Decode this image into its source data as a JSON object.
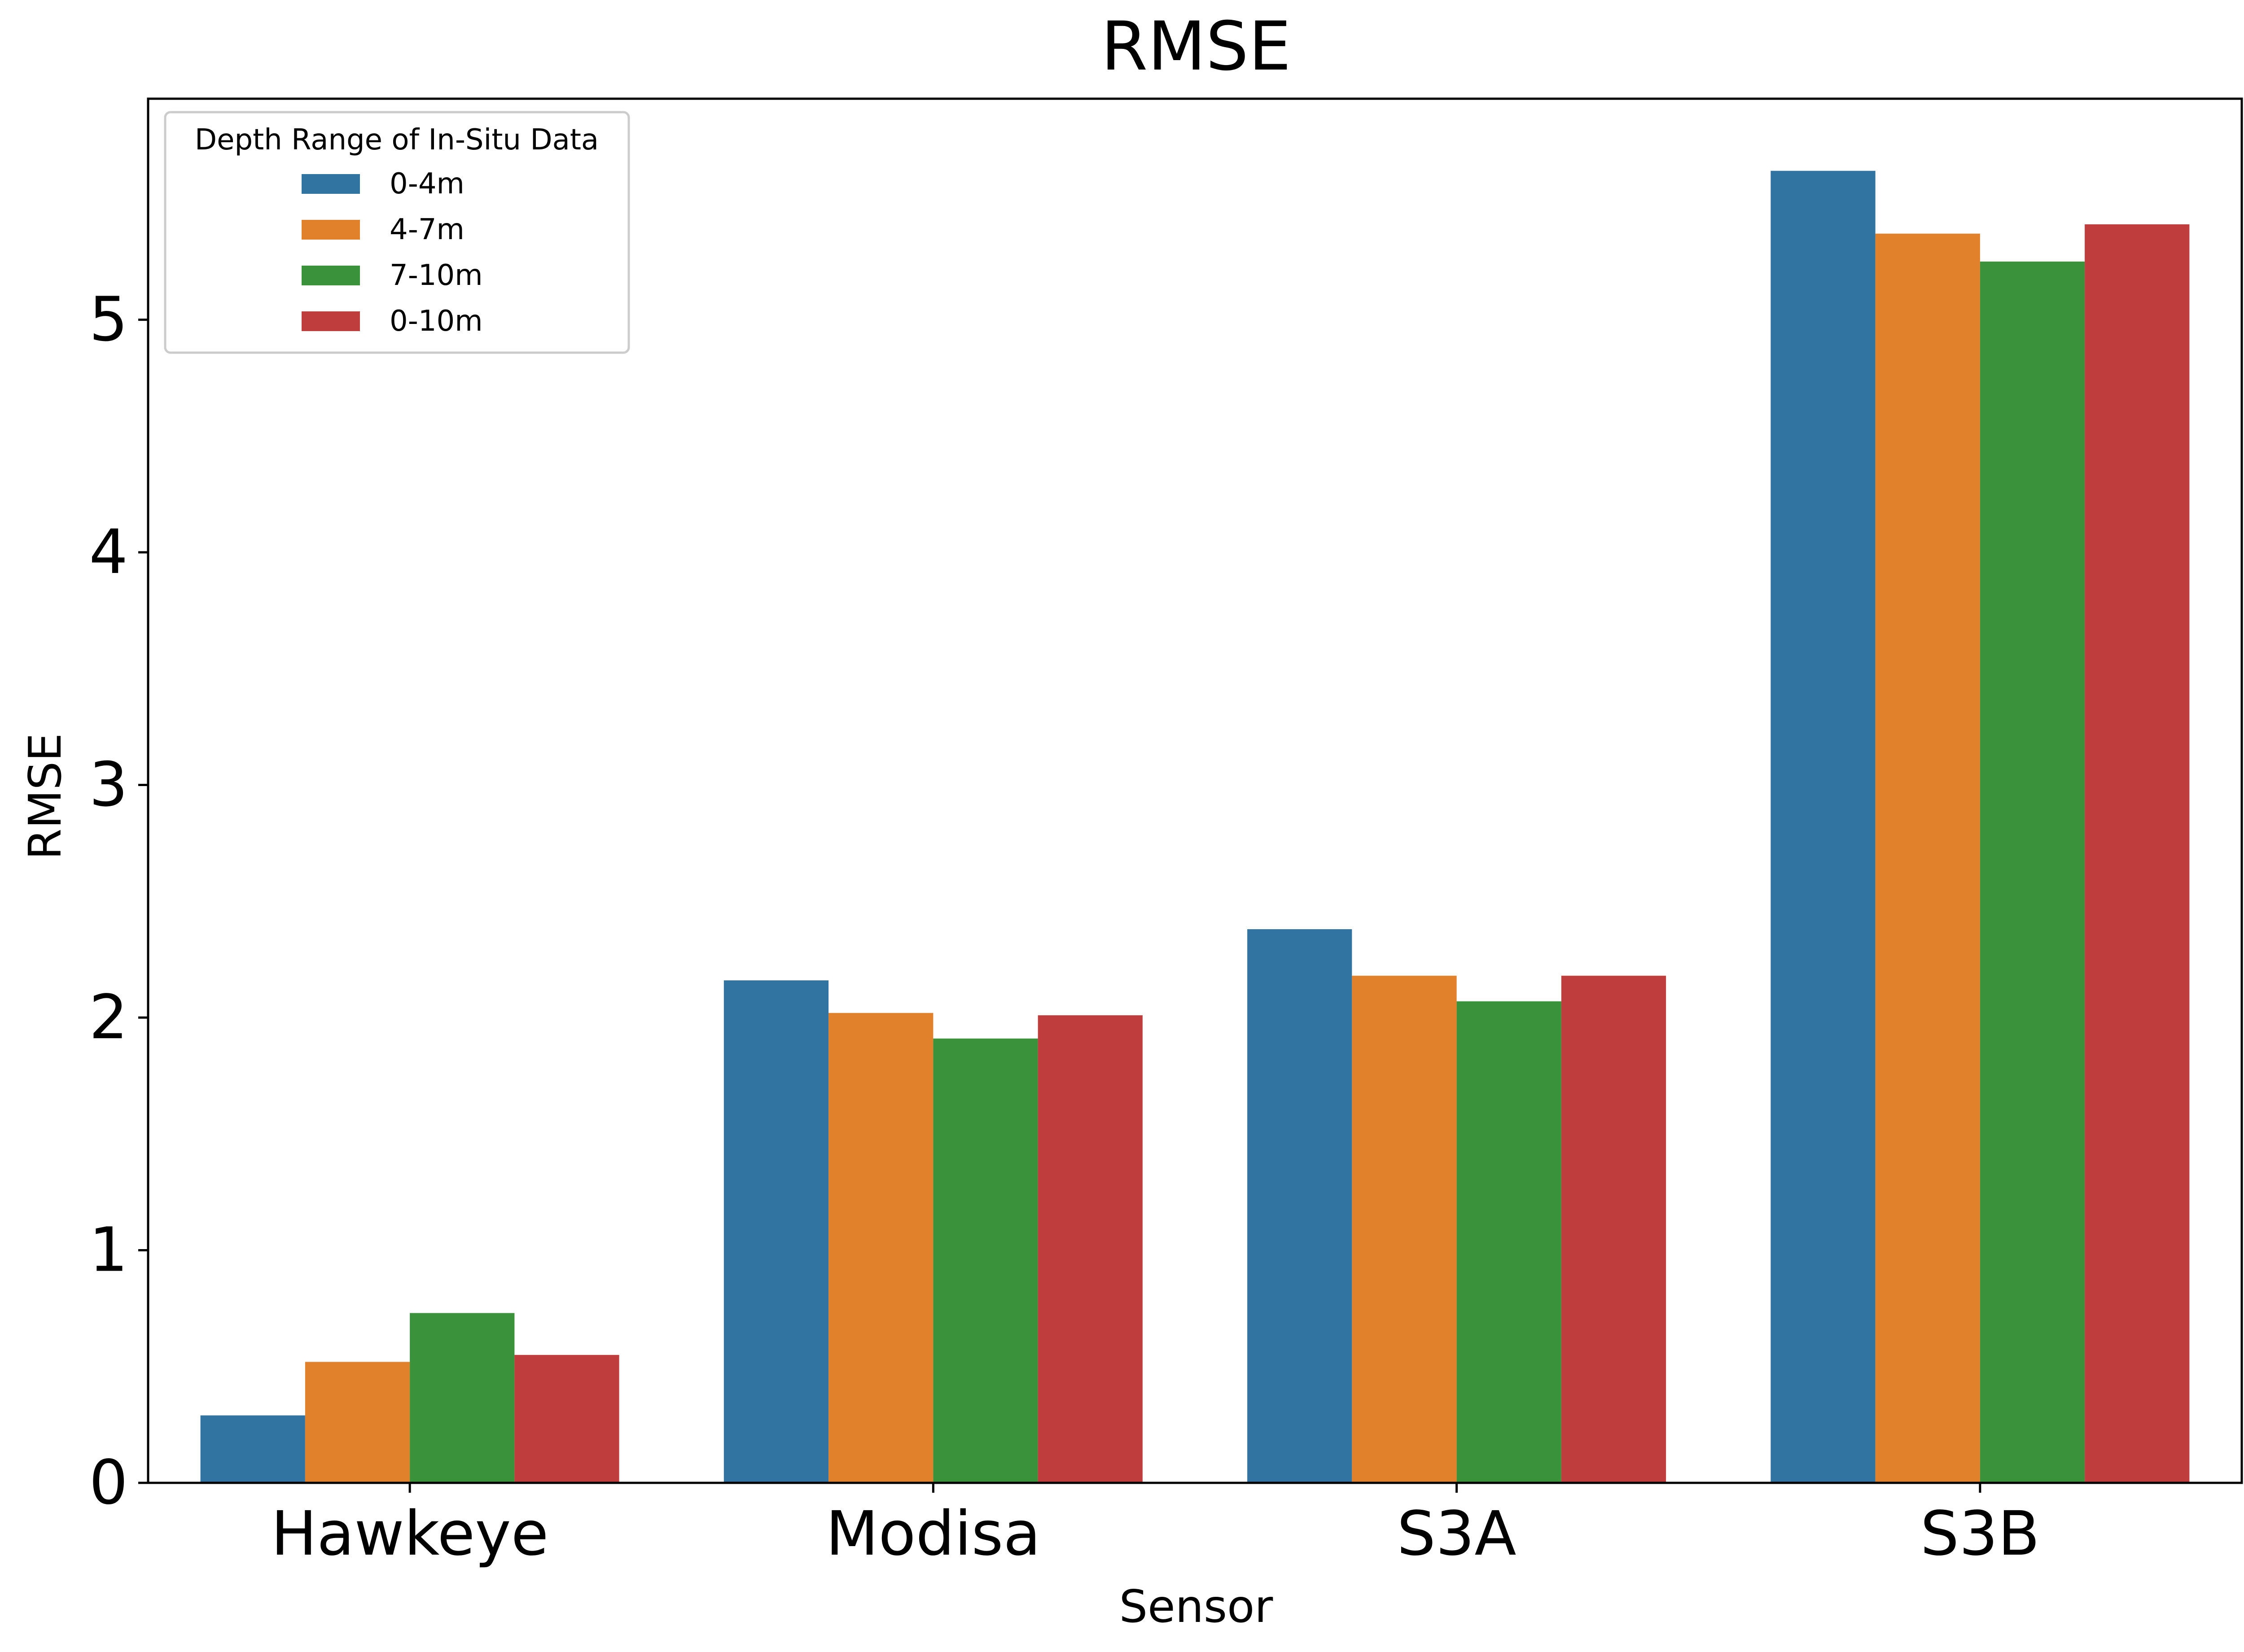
{
  "chart_data": {
    "type": "bar",
    "title": "RMSE",
    "xlabel": "Sensor",
    "ylabel": "RMSE",
    "categories": [
      "Hawkeye",
      "Modisa",
      "S3A",
      "S3B"
    ],
    "ylim": [
      0,
      5.95
    ],
    "yticks": [
      0,
      1,
      2,
      3,
      4,
      5
    ],
    "ytick_labels": [
      "0",
      "1",
      "2",
      "3",
      "4",
      "5"
    ],
    "grid": false,
    "legend": {
      "title": "Depth Range of In-Situ Data",
      "placement": "top-left"
    },
    "series": [
      {
        "name": "0-4m",
        "color": "#3274a1",
        "values": [
          0.29,
          2.16,
          2.38,
          5.64
        ]
      },
      {
        "name": "4-7m",
        "color": "#e1812c",
        "values": [
          0.52,
          2.02,
          2.18,
          5.37
        ]
      },
      {
        "name": "7-10m",
        "color": "#3a923a",
        "values": [
          0.73,
          1.91,
          2.07,
          5.25
        ]
      },
      {
        "name": "0-10m",
        "color": "#c03d3e",
        "values": [
          0.55,
          2.01,
          2.18,
          5.41
        ]
      }
    ]
  }
}
